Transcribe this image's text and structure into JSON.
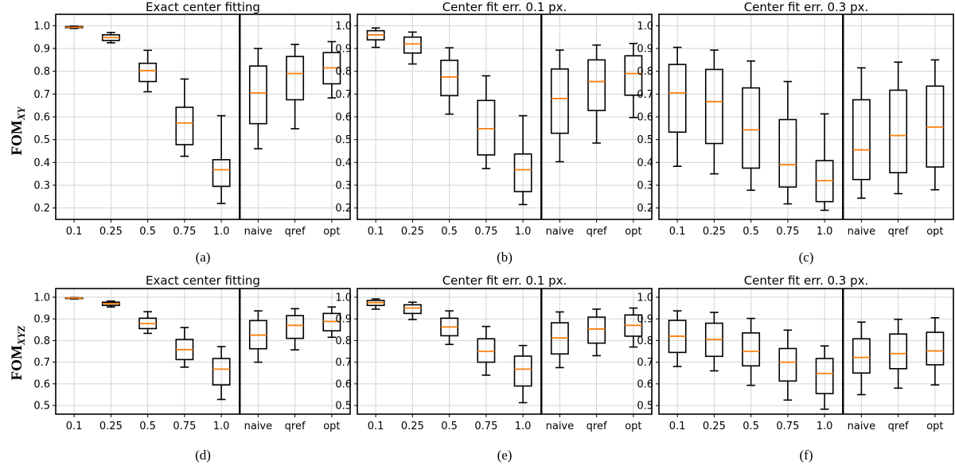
{
  "colors": {
    "median": "#ff7f0e",
    "box": "#000000",
    "grid": "#d3d3d3"
  },
  "y_labels": [
    {
      "main": "FOM",
      "sub": "XY"
    },
    {
      "main": "FOM",
      "sub": "XYZ"
    }
  ],
  "chart_data": [
    {
      "type": "box",
      "row": 0,
      "col": 0,
      "title": "Exact center fitting",
      "caption": "(a)",
      "ylim": [
        0.15,
        1.05
      ],
      "yticks": [
        0.2,
        0.3,
        0.4,
        0.5,
        0.6,
        0.7,
        0.8,
        0.9,
        1.0
      ],
      "grid": true,
      "categories": [
        "0.1",
        "0.25",
        "0.5",
        "0.75",
        "1.0",
        "naive",
        "qref",
        "opt"
      ],
      "divider_after": 5,
      "boxes": [
        {
          "min": 0.988,
          "q1": 0.991,
          "median": 0.993,
          "q3": 0.996,
          "max": 0.998
        },
        {
          "min": 0.925,
          "q1": 0.935,
          "median": 0.948,
          "q3": 0.96,
          "max": 0.97
        },
        {
          "min": 0.71,
          "q1": 0.755,
          "median": 0.803,
          "q3": 0.835,
          "max": 0.892
        },
        {
          "min": 0.427,
          "q1": 0.478,
          "median": 0.573,
          "q3": 0.642,
          "max": 0.766
        },
        {
          "min": 0.22,
          "q1": 0.295,
          "median": 0.368,
          "q3": 0.412,
          "max": 0.605
        },
        {
          "min": 0.46,
          "q1": 0.57,
          "median": 0.705,
          "q3": 0.823,
          "max": 0.9
        },
        {
          "min": 0.548,
          "q1": 0.675,
          "median": 0.79,
          "q3": 0.865,
          "max": 0.918
        },
        {
          "min": 0.683,
          "q1": 0.745,
          "median": 0.815,
          "q3": 0.882,
          "max": 0.93
        }
      ]
    },
    {
      "type": "box",
      "row": 0,
      "col": 1,
      "title": "Center fit err. 0.1 px.",
      "caption": "(b)",
      "ylim": [
        0.15,
        1.05
      ],
      "yticks": [
        0.2,
        0.3,
        0.4,
        0.5,
        0.6,
        0.7,
        0.8,
        0.9,
        1.0
      ],
      "grid": true,
      "categories": [
        "0.1",
        "0.25",
        "0.5",
        "0.75",
        "1.0",
        "naive",
        "qref",
        "opt"
      ],
      "divider_after": 5,
      "boxes": [
        {
          "min": 0.905,
          "q1": 0.938,
          "median": 0.96,
          "q3": 0.978,
          "max": 0.99
        },
        {
          "min": 0.832,
          "q1": 0.88,
          "median": 0.92,
          "q3": 0.95,
          "max": 0.972
        },
        {
          "min": 0.612,
          "q1": 0.693,
          "median": 0.775,
          "q3": 0.848,
          "max": 0.903
        },
        {
          "min": 0.373,
          "q1": 0.433,
          "median": 0.548,
          "q3": 0.672,
          "max": 0.78
        },
        {
          "min": 0.215,
          "q1": 0.272,
          "median": 0.368,
          "q3": 0.437,
          "max": 0.605
        },
        {
          "min": 0.403,
          "q1": 0.528,
          "median": 0.68,
          "q3": 0.81,
          "max": 0.893
        },
        {
          "min": 0.485,
          "q1": 0.628,
          "median": 0.755,
          "q3": 0.85,
          "max": 0.915
        },
        {
          "min": 0.597,
          "q1": 0.695,
          "median": 0.79,
          "q3": 0.868,
          "max": 0.922
        }
      ]
    },
    {
      "type": "box",
      "row": 0,
      "col": 2,
      "title": "Center fit err. 0.3 px.",
      "caption": "(c)",
      "ylim": [
        0.15,
        1.05
      ],
      "yticks": [
        0.2,
        0.3,
        0.4,
        0.5,
        0.6,
        0.7,
        0.8,
        0.9,
        1.0
      ],
      "grid": true,
      "categories": [
        "0.1",
        "0.25",
        "0.5",
        "0.75",
        "1.0",
        "naive",
        "qref",
        "opt"
      ],
      "divider_after": 5,
      "boxes": [
        {
          "min": 0.383,
          "q1": 0.533,
          "median": 0.705,
          "q3": 0.83,
          "max": 0.905
        },
        {
          "min": 0.35,
          "q1": 0.483,
          "median": 0.667,
          "q3": 0.808,
          "max": 0.893
        },
        {
          "min": 0.278,
          "q1": 0.375,
          "median": 0.543,
          "q3": 0.727,
          "max": 0.845
        },
        {
          "min": 0.218,
          "q1": 0.292,
          "median": 0.39,
          "q3": 0.588,
          "max": 0.755
        },
        {
          "min": 0.19,
          "q1": 0.228,
          "median": 0.32,
          "q3": 0.408,
          "max": 0.613
        },
        {
          "min": 0.243,
          "q1": 0.325,
          "median": 0.455,
          "q3": 0.675,
          "max": 0.815
        },
        {
          "min": 0.263,
          "q1": 0.355,
          "median": 0.518,
          "q3": 0.717,
          "max": 0.84
        },
        {
          "min": 0.28,
          "q1": 0.38,
          "median": 0.555,
          "q3": 0.735,
          "max": 0.85
        }
      ]
    },
    {
      "type": "box",
      "row": 1,
      "col": 0,
      "title": "Exact center fitting",
      "caption": "(d)",
      "ylim": [
        0.46,
        1.04
      ],
      "yticks": [
        0.5,
        0.6,
        0.7,
        0.8,
        0.9,
        1.0
      ],
      "grid": true,
      "categories": [
        "0.1",
        "0.25",
        "0.5",
        "0.75",
        "1.0",
        "naive",
        "qref",
        "opt"
      ],
      "divider_after": 5,
      "boxes": [
        {
          "min": 0.992,
          "q1": 0.994,
          "median": 0.996,
          "q3": 0.997,
          "max": 0.998
        },
        {
          "min": 0.955,
          "q1": 0.962,
          "median": 0.97,
          "q3": 0.977,
          "max": 0.982
        },
        {
          "min": 0.833,
          "q1": 0.855,
          "median": 0.878,
          "q3": 0.903,
          "max": 0.933
        },
        {
          "min": 0.677,
          "q1": 0.712,
          "median": 0.758,
          "q3": 0.805,
          "max": 0.86
        },
        {
          "min": 0.528,
          "q1": 0.595,
          "median": 0.668,
          "q3": 0.717,
          "max": 0.772
        },
        {
          "min": 0.7,
          "q1": 0.762,
          "median": 0.825,
          "q3": 0.892,
          "max": 0.937
        },
        {
          "min": 0.757,
          "q1": 0.81,
          "median": 0.87,
          "q3": 0.915,
          "max": 0.947
        },
        {
          "min": 0.815,
          "q1": 0.845,
          "median": 0.888,
          "q3": 0.925,
          "max": 0.955
        }
      ]
    },
    {
      "type": "box",
      "row": 1,
      "col": 1,
      "title": "Center fit err. 0.1 px.",
      "caption": "(e)",
      "ylim": [
        0.46,
        1.04
      ],
      "yticks": [
        0.5,
        0.6,
        0.7,
        0.8,
        0.9,
        1.0
      ],
      "grid": true,
      "categories": [
        "0.1",
        "0.25",
        "0.5",
        "0.75",
        "1.0",
        "naive",
        "qref",
        "opt"
      ],
      "divider_after": 5,
      "boxes": [
        {
          "min": 0.945,
          "q1": 0.962,
          "median": 0.975,
          "q3": 0.985,
          "max": 0.992
        },
        {
          "min": 0.897,
          "q1": 0.925,
          "median": 0.95,
          "q3": 0.965,
          "max": 0.977
        },
        {
          "min": 0.782,
          "q1": 0.822,
          "median": 0.863,
          "q3": 0.903,
          "max": 0.937
        },
        {
          "min": 0.64,
          "q1": 0.7,
          "median": 0.75,
          "q3": 0.808,
          "max": 0.865
        },
        {
          "min": 0.513,
          "q1": 0.59,
          "median": 0.668,
          "q3": 0.728,
          "max": 0.777
        },
        {
          "min": 0.675,
          "q1": 0.738,
          "median": 0.812,
          "q3": 0.882,
          "max": 0.932
        },
        {
          "min": 0.73,
          "q1": 0.788,
          "median": 0.853,
          "q3": 0.908,
          "max": 0.945
        },
        {
          "min": 0.77,
          "q1": 0.82,
          "median": 0.87,
          "q3": 0.918,
          "max": 0.95
        }
      ]
    },
    {
      "type": "box",
      "row": 1,
      "col": 2,
      "title": "Center fit err. 0.3 px.",
      "caption": "(f)",
      "ylim": [
        0.46,
        1.04
      ],
      "yticks": [
        0.5,
        0.6,
        0.7,
        0.8,
        0.9,
        1.0
      ],
      "grid": true,
      "categories": [
        "0.1",
        "0.25",
        "0.5",
        "0.75",
        "1.0",
        "naive",
        "qref",
        "opt"
      ],
      "divider_after": 5,
      "boxes": [
        {
          "min": 0.68,
          "q1": 0.745,
          "median": 0.82,
          "q3": 0.893,
          "max": 0.937
        },
        {
          "min": 0.66,
          "q1": 0.727,
          "median": 0.805,
          "q3": 0.88,
          "max": 0.93
        },
        {
          "min": 0.593,
          "q1": 0.683,
          "median": 0.75,
          "q3": 0.835,
          "max": 0.902
        },
        {
          "min": 0.525,
          "q1": 0.613,
          "median": 0.7,
          "q3": 0.763,
          "max": 0.848
        },
        {
          "min": 0.483,
          "q1": 0.555,
          "median": 0.648,
          "q3": 0.717,
          "max": 0.775
        },
        {
          "min": 0.55,
          "q1": 0.65,
          "median": 0.722,
          "q3": 0.808,
          "max": 0.885
        },
        {
          "min": 0.58,
          "q1": 0.67,
          "median": 0.74,
          "q3": 0.83,
          "max": 0.898
        },
        {
          "min": 0.595,
          "q1": 0.688,
          "median": 0.752,
          "q3": 0.838,
          "max": 0.905
        }
      ]
    }
  ]
}
